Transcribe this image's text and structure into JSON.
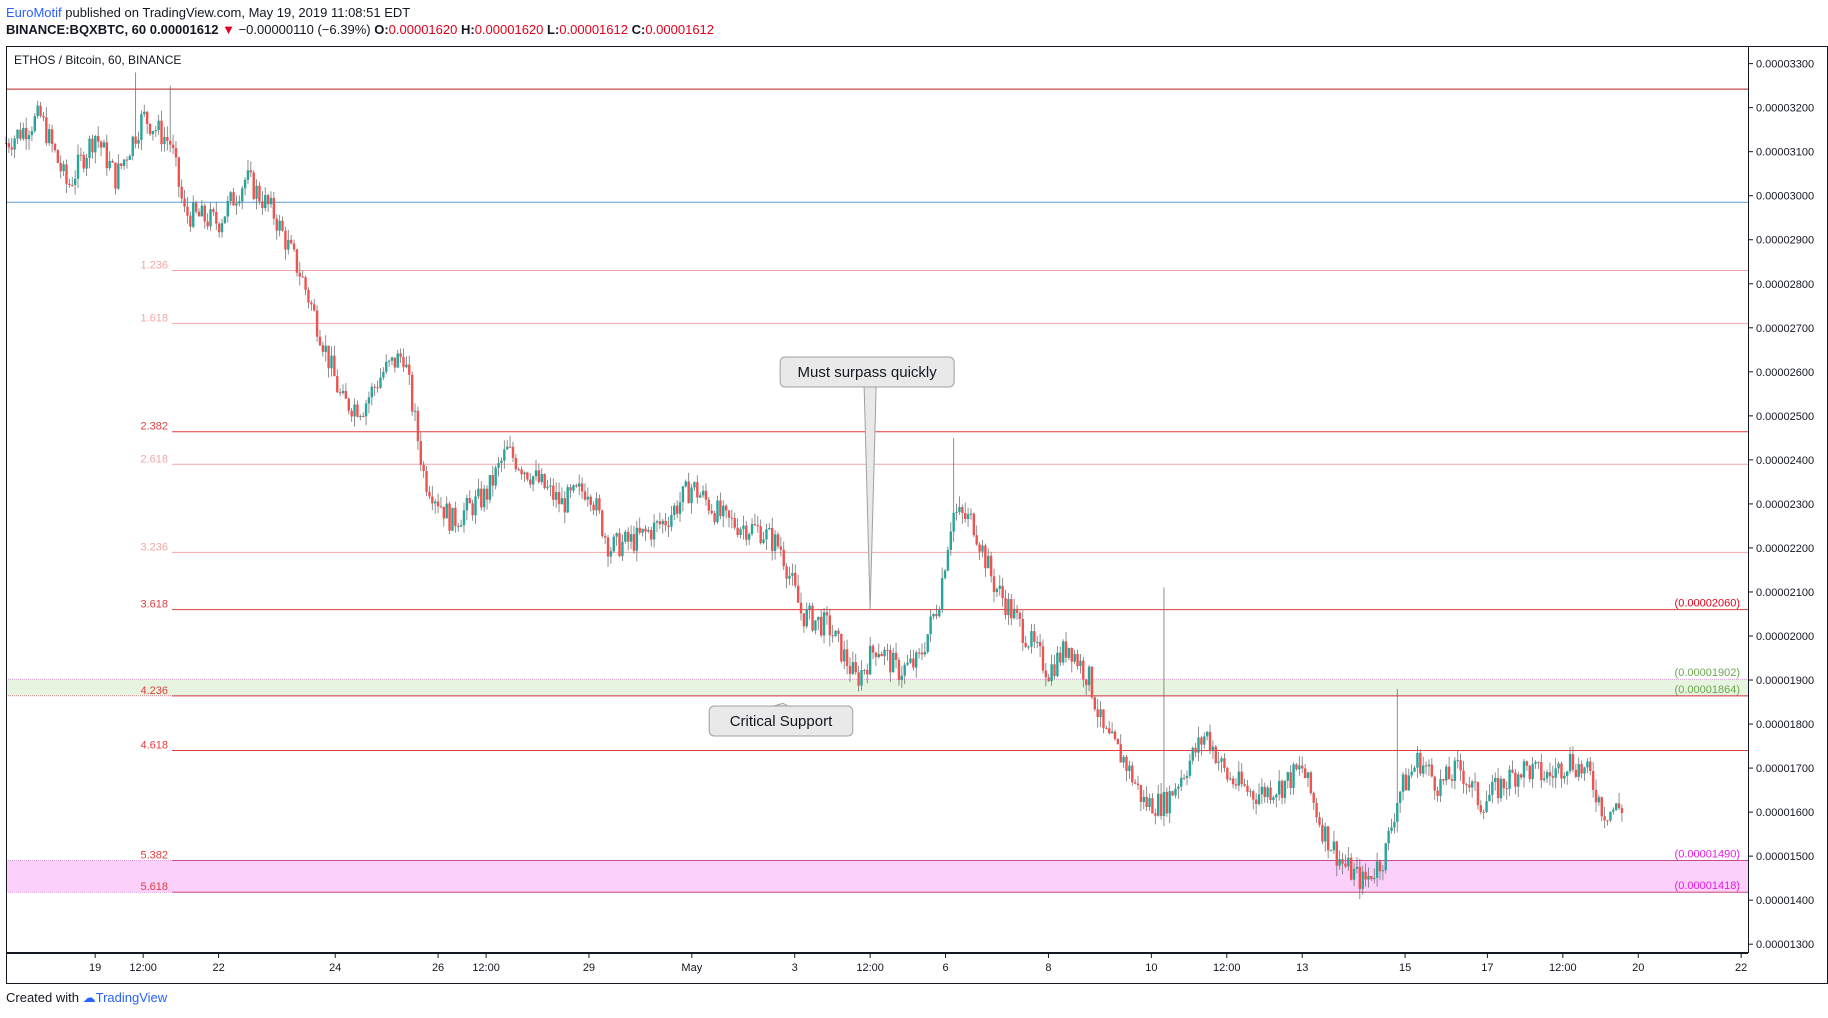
{
  "header": {
    "author": "EuroMotif",
    "published_text": " published on TradingView.com, May 19, 2019 11:08:51 EDT"
  },
  "ohlc": {
    "symbol": "BINANCE:BQXBTC, 60",
    "last": "0.00001612",
    "change": "−0.00000110 (−6.39%)",
    "o_label": "O:",
    "o": "0.00001620",
    "h_label": "H:",
    "h": "0.00001620",
    "l_label": "L:",
    "l": "0.00001612",
    "c_label": "C:",
    "c": "0.00001612",
    "colors": {
      "down": "#e0001b"
    }
  },
  "footer": {
    "created_with": "Created with",
    "brand": "TradingView"
  },
  "chart_data": {
    "type": "candlestick",
    "pair_label": "ETHOS / Bitcoin, 60, BINANCE",
    "ylim": [
      1.28e-05,
      3.34e-05
    ],
    "y_ticks": [
      "0.00003300",
      "0.00003200",
      "0.00003100",
      "0.00003000",
      "0.00002900",
      "0.00002800",
      "0.00002700",
      "0.00002600",
      "0.00002500",
      "0.00002400",
      "0.00002300",
      "0.00002200",
      "0.00002100",
      "0.00002000",
      "0.00001900",
      "0.00001800",
      "0.00001700",
      "0.00001600",
      "0.00001500",
      "0.00001400",
      "0.00001300"
    ],
    "y_tick_values": [
      3.3e-05,
      3.2e-05,
      3.1e-05,
      3e-05,
      2.9e-05,
      2.8e-05,
      2.7e-05,
      2.6e-05,
      2.5e-05,
      2.4e-05,
      2.3e-05,
      2.2e-05,
      2.1e-05,
      2e-05,
      1.9e-05,
      1.8e-05,
      1.7e-05,
      1.6e-05,
      1.5e-05,
      1.4e-05,
      1.3e-05
    ],
    "x_ticks": [
      {
        "label": "19",
        "t": 1.3
      },
      {
        "label": "12:00",
        "t": 2.0
      },
      {
        "label": "22",
        "t": 3.1
      },
      {
        "label": "24",
        "t": 4.8
      },
      {
        "label": "26",
        "t": 6.3
      },
      {
        "label": "12:00",
        "t": 7.0
      },
      {
        "label": "29",
        "t": 8.5
      },
      {
        "label": "May",
        "t": 10.0
      },
      {
        "label": "3",
        "t": 11.5
      },
      {
        "label": "12:00",
        "t": 12.6
      },
      {
        "label": "6",
        "t": 13.7
      },
      {
        "label": "8",
        "t": 15.2
      },
      {
        "label": "10",
        "t": 16.7
      },
      {
        "label": "12:00",
        "t": 17.8
      },
      {
        "label": "13",
        "t": 18.9
      },
      {
        "label": "15",
        "t": 20.4
      },
      {
        "label": "17",
        "t": 21.6
      },
      {
        "label": "12:00",
        "t": 22.7
      },
      {
        "label": "20",
        "t": 23.8
      },
      {
        "label": "22",
        "t": 25.3
      }
    ],
    "x_range": [
      0,
      25.4
    ],
    "fib_levels": [
      {
        "label": "1.236",
        "price": 2.83e-05,
        "color": "#f4a6a6"
      },
      {
        "label": "1.618",
        "price": 2.71e-05,
        "color": "#f4a6a6"
      },
      {
        "label": "2.382",
        "price": 2.464e-05,
        "color": "#e23d3d"
      },
      {
        "label": "2.618",
        "price": 2.39e-05,
        "color": "#f4a6a6"
      },
      {
        "label": "3.236",
        "price": 2.19e-05,
        "color": "#f4a6a6"
      },
      {
        "label": "3.618",
        "price": 2.06e-05,
        "color": "#e23d3d"
      },
      {
        "label": "4.236",
        "price": 1.864e-05,
        "color": "#e23d3d"
      },
      {
        "label": "4.618",
        "price": 1.74e-05,
        "color": "#e23d3d"
      },
      {
        "label": "5.382",
        "price": 1.49e-05,
        "color": "#e23d3d"
      },
      {
        "label": "5.618",
        "price": 1.418e-05,
        "color": "#e23d3d"
      }
    ],
    "top_line_price": 3.242e-05,
    "blue_line_price": 2.985e-05,
    "zones": [
      {
        "from": 1.864e-05,
        "to": 1.902e-05,
        "color": "#e6f4e0"
      },
      {
        "from": 1.418e-05,
        "to": 1.49e-05,
        "color": "#fbd1fb"
      }
    ],
    "price_labels": [
      {
        "text": "(0.00002060)",
        "price": 2.06e-05,
        "color": "#e0001b"
      },
      {
        "text": "(0.00001902)",
        "price": 1.902e-05,
        "color": "#6aa84f"
      },
      {
        "text": "(0.00001864)",
        "price": 1.864e-05,
        "color": "#6aa84f"
      },
      {
        "text": "(0.00001490)",
        "price": 1.49e-05,
        "color": "#e619e6"
      },
      {
        "text": "(0.00001418)",
        "price": 1.418e-05,
        "color": "#e619e6"
      }
    ],
    "annotations": [
      {
        "text": "Must surpass quickly",
        "t": 12.6,
        "price": 2.06e-05,
        "position": "above"
      },
      {
        "text": "Critical Support",
        "t": 11.3,
        "price": 1.87e-05,
        "position": "below"
      }
    ],
    "price_path": [
      {
        "t": 0.0,
        "p": 3.12e-05
      },
      {
        "t": 0.5,
        "p": 3.18e-05
      },
      {
        "t": 0.9,
        "p": 3.02e-05
      },
      {
        "t": 1.3,
        "p": 3.14e-05
      },
      {
        "t": 1.6,
        "p": 3.04e-05
      },
      {
        "t": 2.0,
        "p": 3.18e-05
      },
      {
        "t": 2.4,
        "p": 3.12e-05
      },
      {
        "t": 2.6,
        "p": 2.96e-05
      },
      {
        "t": 3.1,
        "p": 2.94e-05
      },
      {
        "t": 3.5,
        "p": 3.04e-05
      },
      {
        "t": 3.9,
        "p": 2.96e-05
      },
      {
        "t": 4.3,
        "p": 2.82e-05
      },
      {
        "t": 4.6,
        "p": 2.68e-05
      },
      {
        "t": 4.9,
        "p": 2.53e-05
      },
      {
        "t": 5.2,
        "p": 2.52e-05
      },
      {
        "t": 5.5,
        "p": 2.6e-05
      },
      {
        "t": 5.8,
        "p": 2.64e-05
      },
      {
        "t": 6.1,
        "p": 2.36e-05
      },
      {
        "t": 6.5,
        "p": 2.26e-05
      },
      {
        "t": 7.0,
        "p": 2.32e-05
      },
      {
        "t": 7.3,
        "p": 2.42e-05
      },
      {
        "t": 7.7,
        "p": 2.36e-05
      },
      {
        "t": 8.1,
        "p": 2.3e-05
      },
      {
        "t": 8.5,
        "p": 2.34e-05
      },
      {
        "t": 8.8,
        "p": 2.2e-05
      },
      {
        "t": 9.2,
        "p": 2.22e-05
      },
      {
        "t": 9.6,
        "p": 2.26e-05
      },
      {
        "t": 10.0,
        "p": 2.34e-05
      },
      {
        "t": 10.5,
        "p": 2.26e-05
      },
      {
        "t": 11.0,
        "p": 2.24e-05
      },
      {
        "t": 11.3,
        "p": 2.2e-05
      },
      {
        "t": 11.6,
        "p": 2.05e-05
      },
      {
        "t": 12.0,
        "p": 2.02e-05
      },
      {
        "t": 12.4,
        "p": 1.9e-05
      },
      {
        "t": 12.7,
        "p": 1.98e-05
      },
      {
        "t": 13.0,
        "p": 1.92e-05
      },
      {
        "t": 13.3,
        "p": 1.94e-05
      },
      {
        "t": 13.6,
        "p": 2.08e-05
      },
      {
        "t": 13.8,
        "p": 2.28e-05
      },
      {
        "t": 14.1,
        "p": 2.26e-05
      },
      {
        "t": 14.4,
        "p": 2.12e-05
      },
      {
        "t": 14.8,
        "p": 2.02e-05
      },
      {
        "t": 15.2,
        "p": 1.92e-05
      },
      {
        "t": 15.5,
        "p": 1.98e-05
      },
      {
        "t": 15.8,
        "p": 1.9e-05
      },
      {
        "t": 16.0,
        "p": 1.78e-05
      },
      {
        "t": 16.3,
        "p": 1.72e-05
      },
      {
        "t": 16.6,
        "p": 1.62e-05
      },
      {
        "t": 16.9,
        "p": 1.62e-05
      },
      {
        "t": 17.2,
        "p": 1.7e-05
      },
      {
        "t": 17.5,
        "p": 1.78e-05
      },
      {
        "t": 17.8,
        "p": 1.68e-05
      },
      {
        "t": 18.2,
        "p": 1.64e-05
      },
      {
        "t": 18.6,
        "p": 1.66e-05
      },
      {
        "t": 18.9,
        "p": 1.7e-05
      },
      {
        "t": 19.2,
        "p": 1.56e-05
      },
      {
        "t": 19.5,
        "p": 1.48e-05
      },
      {
        "t": 19.8,
        "p": 1.44e-05
      },
      {
        "t": 20.1,
        "p": 1.5e-05
      },
      {
        "t": 20.3,
        "p": 1.64e-05
      },
      {
        "t": 20.6,
        "p": 1.72e-05
      },
      {
        "t": 20.9,
        "p": 1.66e-05
      },
      {
        "t": 21.2,
        "p": 1.7e-05
      },
      {
        "t": 21.5,
        "p": 1.62e-05
      },
      {
        "t": 21.8,
        "p": 1.66e-05
      },
      {
        "t": 22.1,
        "p": 1.7e-05
      },
      {
        "t": 22.5,
        "p": 1.68e-05
      },
      {
        "t": 22.8,
        "p": 1.72e-05
      },
      {
        "t": 23.1,
        "p": 1.68e-05
      },
      {
        "t": 23.3,
        "p": 1.6e-05
      },
      {
        "t": 23.6,
        "p": 1.612e-05
      }
    ],
    "colors": {
      "up": "#26a69a",
      "down": "#ef5350",
      "wick": "#737375",
      "grid": "#e0e3eb",
      "axis": "#131722"
    }
  }
}
